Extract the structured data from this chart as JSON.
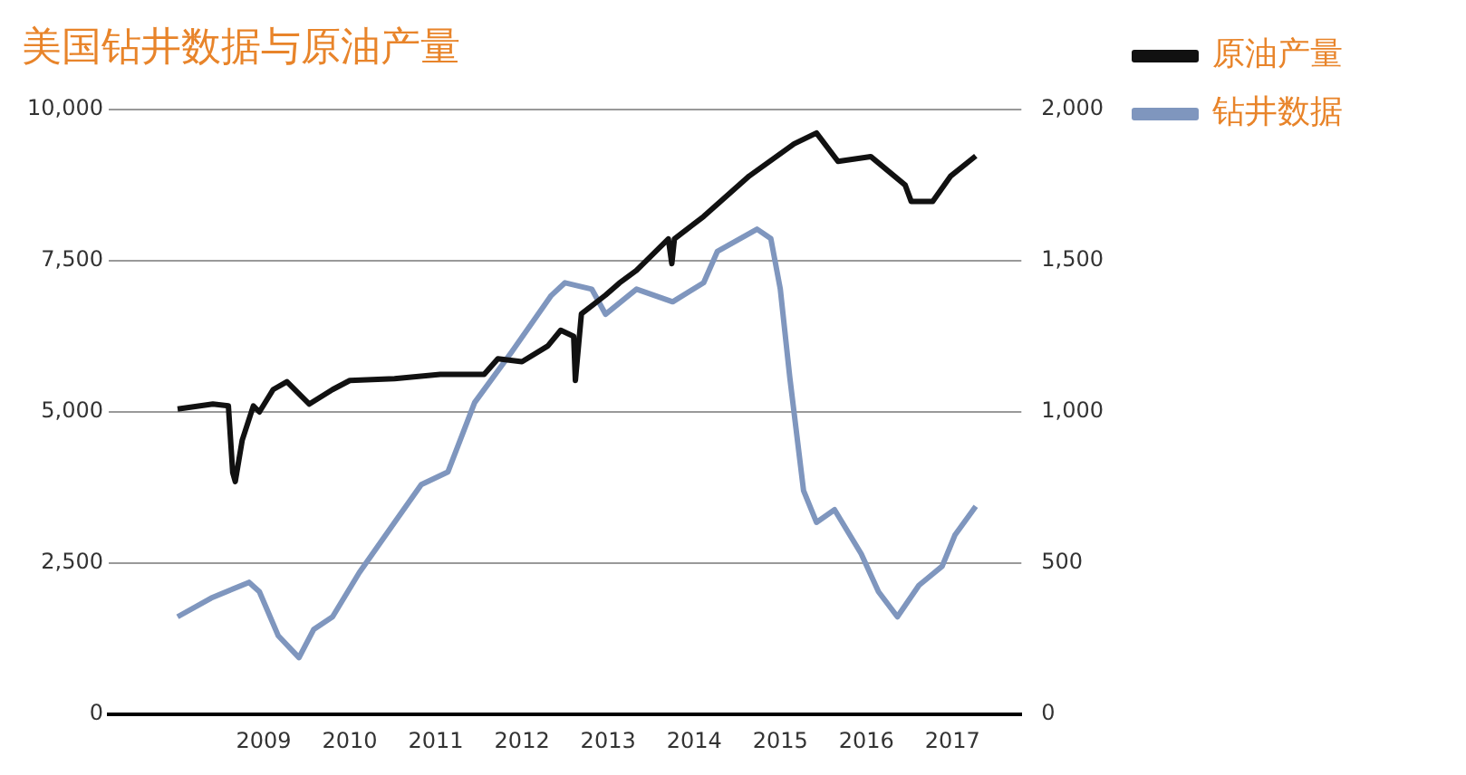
{
  "chart_data": {
    "type": "line",
    "title": "美国钻井数据与原油产量",
    "xlim": [
      2007.2,
      2017.8
    ],
    "xticks": [
      2009,
      2010,
      2011,
      2012,
      2013,
      2014,
      2015,
      2016,
      2017
    ],
    "ylim": [
      0,
      10000
    ],
    "yticks": [
      {
        "value": 0,
        "label": "0"
      },
      {
        "value": 2500,
        "label": "2,500"
      },
      {
        "value": 5000,
        "label": "5,000"
      },
      {
        "value": 7500,
        "label": "7,500"
      },
      {
        "value": 10000,
        "label": "10,000"
      }
    ],
    "y2lim": [
      0,
      2000
    ],
    "y2ticks": [
      {
        "value": 0,
        "label": "0"
      },
      {
        "value": 500,
        "label": "500"
      },
      {
        "value": 1000,
        "label": "1,000"
      },
      {
        "value": 1500,
        "label": "1,500"
      },
      {
        "value": 2000,
        "label": "2,000"
      }
    ],
    "grid": "y",
    "legend": "right",
    "marker": "none",
    "line_style": "solid",
    "series": [
      {
        "name": "原油产量",
        "color": "#111111",
        "x": [
          2008.0,
          2008.41,
          2008.59,
          2008.64,
          2008.67,
          2008.75,
          2008.88,
          2008.95,
          2009.11,
          2009.27,
          2009.53,
          2009.8,
          2010.0,
          2010.52,
          2011.05,
          2011.56,
          2011.72,
          2012.0,
          2012.3,
          2012.45,
          2012.6,
          2012.62,
          2012.69,
          2012.97,
          2013.13,
          2013.33,
          2013.7,
          2013.74,
          2013.77,
          2014.11,
          2014.64,
          2015.16,
          2015.42,
          2015.67,
          2016.05,
          2016.45,
          2016.52,
          2016.77,
          2016.98,
          2017.27
        ],
        "values": [
          5050,
          5130,
          5100,
          4000,
          3850,
          4530,
          5100,
          5000,
          5370,
          5500,
          5130,
          5370,
          5520,
          5550,
          5620,
          5620,
          5880,
          5830,
          6090,
          6350,
          6250,
          5520,
          6620,
          6930,
          7130,
          7340,
          7860,
          7450,
          7860,
          8230,
          8900,
          9430,
          9610,
          9140,
          9220,
          8750,
          8480,
          8480,
          8900,
          9230
        ]
      },
      {
        "name": "钻井数据",
        "color": "#7f96be",
        "axis": "y2",
        "x": [
          2008.0,
          2008.39,
          2008.83,
          2008.95,
          2009.17,
          2009.41,
          2009.58,
          2009.8,
          2010.11,
          2010.52,
          2010.83,
          2011.14,
          2011.45,
          2011.88,
          2012.34,
          2012.5,
          2012.81,
          2012.97,
          2013.33,
          2013.75,
          2014.11,
          2014.27,
          2014.73,
          2014.89,
          2015.0,
          2015.11,
          2015.27,
          2015.42,
          2015.63,
          2015.94,
          2016.14,
          2016.36,
          2016.61,
          2016.88,
          2017.03,
          2017.27
        ],
        "values": [
          323,
          385,
          437,
          406,
          260,
          188,
          281,
          323,
          469,
          635,
          760,
          802,
          1031,
          1198,
          1385,
          1427,
          1406,
          1323,
          1406,
          1364,
          1427,
          1531,
          1604,
          1573,
          1406,
          1115,
          740,
          635,
          677,
          531,
          406,
          323,
          427,
          490,
          594,
          688
        ]
      }
    ]
  }
}
